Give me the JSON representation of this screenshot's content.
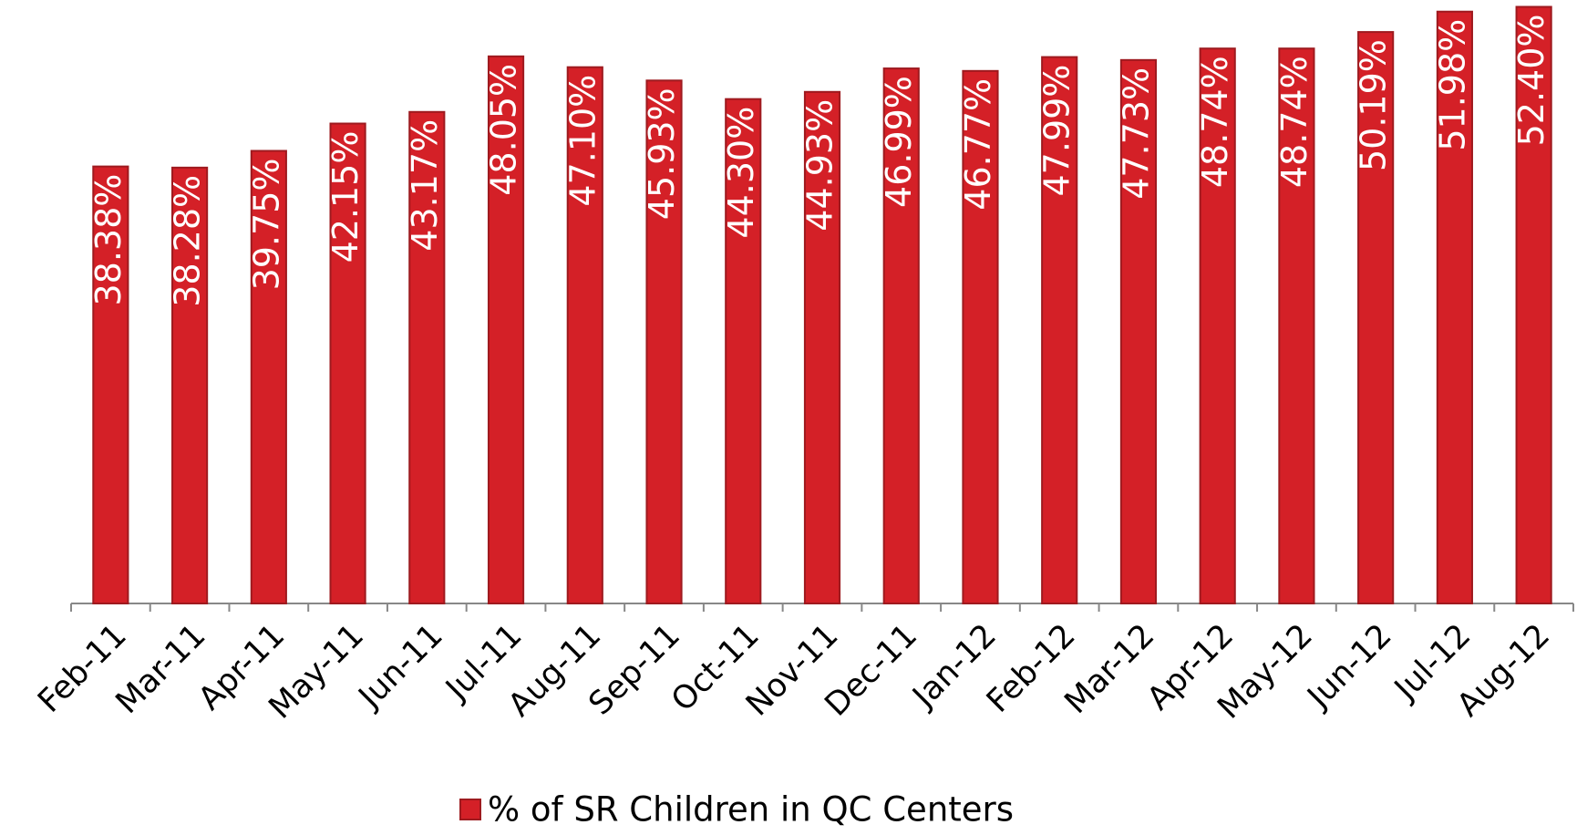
{
  "chart_data": {
    "type": "bar",
    "categories": [
      "Feb-11",
      "Mar-11",
      "Apr-11",
      "May-11",
      "Jun-11",
      "Jul-11",
      "Aug-11",
      "Sep-11",
      "Oct-11",
      "Nov-11",
      "Dec-11",
      "Jan-12",
      "Feb-12",
      "Mar-12",
      "Apr-12",
      "May-12",
      "Jun-12",
      "Jul-12",
      "Aug-12"
    ],
    "series": [
      {
        "name": "% of SR Children in QC Centers",
        "color": "#d42027",
        "values": [
          38.38,
          38.28,
          39.75,
          42.15,
          43.17,
          48.05,
          47.1,
          45.93,
          44.3,
          44.93,
          46.99,
          46.77,
          47.99,
          47.73,
          48.74,
          48.74,
          50.19,
          51.98,
          52.4
        ],
        "value_labels": [
          "38.38%",
          "38.28%",
          "39.75%",
          "42.15%",
          "43.17%",
          "48.05%",
          "47.10%",
          "45.93%",
          "44.30%",
          "44.93%",
          "46.99%",
          "46.77%",
          "47.99%",
          "47.73%",
          "48.74%",
          "48.74%",
          "50.19%",
          "51.98%",
          "52.40%"
        ]
      }
    ],
    "ylim": [
      0,
      53
    ],
    "legend": "bottom"
  }
}
